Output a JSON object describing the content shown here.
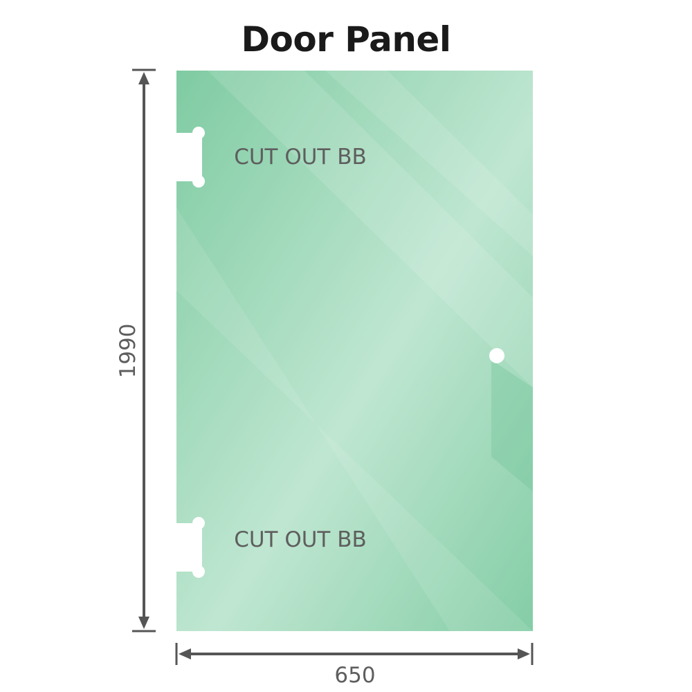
{
  "title": "Door Panel",
  "height_label": "1990",
  "width_label": "650",
  "cutout_top_label": "CUT OUT BB",
  "cutout_bottom_label": "CUT OUT BB",
  "colors": {
    "glass": "#86cfa8",
    "glass_light": "#bde6cf",
    "dimension": "#555555"
  }
}
